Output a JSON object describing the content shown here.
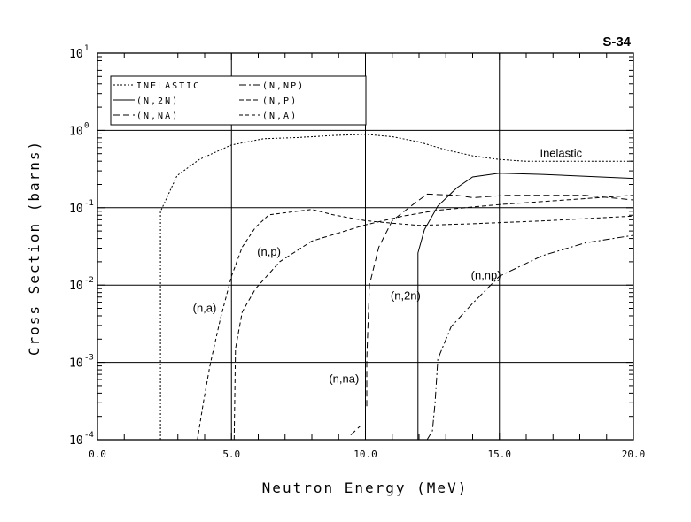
{
  "chart_data": {
    "type": "line",
    "title": "S-34",
    "xlabel": "Neutron Energy (MeV)",
    "ylabel": "Cross Section (barns)",
    "xlim": [
      0,
      20
    ],
    "ylim": [
      0.0001,
      10
    ],
    "yscale": "log",
    "grid": true,
    "legend_placement": "top-left",
    "x_ticks": [
      "0.0",
      "5.0",
      "10.0",
      "15.0",
      "20.0"
    ],
    "y_ticks": [
      {
        "base": "10",
        "exp": "1"
      },
      {
        "base": "10",
        "exp": "0"
      },
      {
        "base": "10",
        "exp": "-1"
      },
      {
        "base": "10",
        "exp": "-2"
      },
      {
        "base": "10",
        "exp": "-3"
      },
      {
        "base": "10",
        "exp": "-4"
      }
    ],
    "series": [
      {
        "name": "INELASTIC",
        "style": "short-dash",
        "points": [
          [
            2.35,
            0.0001
          ],
          [
            2.35,
            0.089
          ],
          [
            2.97,
            0.26
          ],
          [
            3.8,
            0.42
          ],
          [
            5,
            0.65
          ],
          [
            6.2,
            0.78
          ],
          [
            7.5,
            0.81
          ],
          [
            8.8,
            0.86
          ],
          [
            10,
            0.89
          ],
          [
            11,
            0.83
          ],
          [
            12,
            0.71
          ],
          [
            13,
            0.56
          ],
          [
            14,
            0.47
          ],
          [
            15,
            0.42
          ],
          [
            16,
            0.4
          ],
          [
            20,
            0.4
          ]
        ]
      },
      {
        "name": "(N,2N)",
        "style": "solid",
        "points": [
          [
            11.96,
            0.0001
          ],
          [
            11.96,
            0.026
          ],
          [
            12.2,
            0.052
          ],
          [
            12.7,
            0.105
          ],
          [
            13.4,
            0.18
          ],
          [
            14,
            0.25
          ],
          [
            15,
            0.28
          ],
          [
            16.6,
            0.27
          ],
          [
            20,
            0.24
          ]
        ]
      },
      {
        "name": "(N,NA)",
        "style": "long-dash",
        "points": [
          [
            9.45,
            0.000115
          ],
          [
            9.8,
            0.00015
          ],
          null,
          [
            10.05,
            0.00027
          ],
          [
            10.05,
            0.0011
          ],
          [
            10.15,
            0.01
          ],
          [
            10.5,
            0.031
          ],
          [
            11,
            0.068
          ],
          [
            11.7,
            0.105
          ],
          [
            12.3,
            0.15
          ],
          [
            13.4,
            0.145
          ],
          [
            14,
            0.135
          ],
          [
            15.3,
            0.145
          ],
          [
            18.2,
            0.145
          ],
          [
            20,
            0.126
          ]
        ]
      },
      {
        "name": "(N,NP)",
        "style": "dash-dot",
        "points": [
          [
            12.3,
            0.0001
          ],
          [
            12.5,
            0.00013
          ],
          [
            12.6,
            0.0003
          ],
          [
            12.7,
            0.0011
          ],
          [
            13.2,
            0.0029
          ],
          [
            14,
            0.0058
          ],
          [
            15,
            0.013
          ],
          [
            16.6,
            0.024
          ],
          [
            18.2,
            0.035
          ],
          [
            20,
            0.044
          ]
        ]
      },
      {
        "name": "(N,P)",
        "style": "dash",
        "points": [
          [
            5.1,
            0.0001
          ],
          [
            5.15,
            0.0015
          ],
          [
            5.4,
            0.0045
          ],
          [
            5.9,
            0.009
          ],
          [
            6.8,
            0.02
          ],
          [
            8,
            0.037
          ],
          [
            10,
            0.06
          ],
          [
            11.4,
            0.078
          ],
          [
            12.7,
            0.093
          ],
          [
            15,
            0.11
          ],
          [
            20,
            0.145
          ]
        ]
      },
      {
        "name": "(N,A)",
        "style": "medium-dash",
        "points": [
          [
            3.73,
            0.0001
          ],
          [
            3.95,
            0.0003
          ],
          [
            4.2,
            0.00093
          ],
          [
            4.6,
            0.0038
          ],
          [
            5,
            0.013
          ],
          [
            5.4,
            0.031
          ],
          [
            5.9,
            0.056
          ],
          [
            6.4,
            0.081
          ],
          [
            8,
            0.095
          ],
          [
            8.8,
            0.081
          ],
          [
            10,
            0.068
          ],
          [
            11,
            0.063
          ],
          [
            12,
            0.059
          ],
          [
            14,
            0.062
          ],
          [
            16.8,
            0.068
          ],
          [
            20,
            0.078
          ]
        ]
      }
    ],
    "annotations": [
      {
        "text": "Inelastic",
        "x": 17.3,
        "y": 0.45
      },
      {
        "text": "(n,p)",
        "x": 6.4,
        "y": 0.024
      },
      {
        "text": "(n,a)",
        "x": 4.0,
        "y": 0.0045
      },
      {
        "text": "(n,2n)",
        "x": 11.5,
        "y": 0.0065
      },
      {
        "text": "(n,na)",
        "x": 9.2,
        "y": 0.00055
      },
      {
        "text": "(n,np)",
        "x": 14.5,
        "y": 0.012
      }
    ]
  }
}
